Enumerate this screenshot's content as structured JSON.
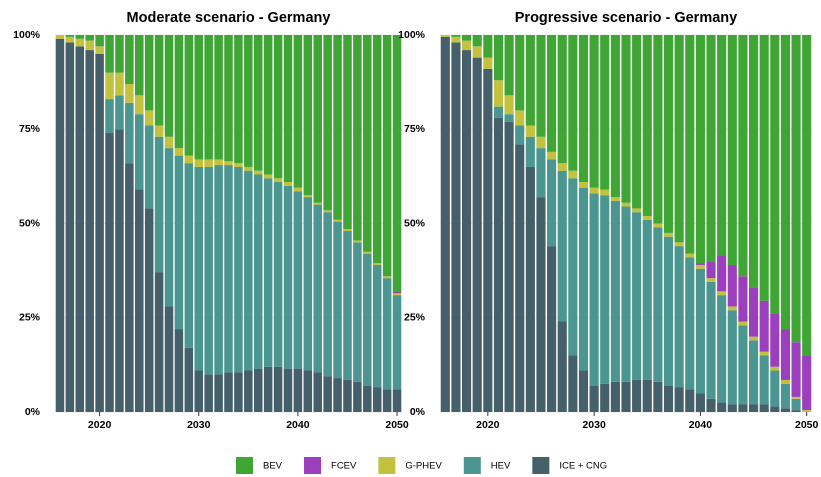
{
  "chart_data": [
    {
      "type": "stacked_bar",
      "title": "Moderate scenario - Germany",
      "x": [
        2016,
        2017,
        2018,
        2019,
        2020,
        2021,
        2022,
        2023,
        2024,
        2025,
        2026,
        2027,
        2028,
        2029,
        2030,
        2031,
        2032,
        2033,
        2034,
        2035,
        2036,
        2037,
        2038,
        2039,
        2040,
        2041,
        2042,
        2043,
        2044,
        2045,
        2046,
        2047,
        2048,
        2049,
        2050
      ],
      "xlim": [
        2015.5,
        2050.5
      ],
      "xticks": [
        2020,
        2030,
        2040,
        2050
      ],
      "ylim": [
        0,
        100
      ],
      "yticks": [
        {
          "value": 0,
          "label": "0%"
        },
        {
          "value": 25,
          "label": "25%"
        },
        {
          "value": 50,
          "label": "50%"
        },
        {
          "value": 75,
          "label": "75%"
        },
        {
          "value": 100,
          "label": "100%"
        }
      ],
      "grid": true,
      "series": [
        {
          "name": "BEV",
          "color": "#3fa535",
          "values": [
            0,
            0.5,
            1,
            1.5,
            3,
            10,
            10,
            13,
            16,
            20,
            24,
            27,
            30,
            32,
            33,
            33,
            33,
            33.5,
            34,
            35,
            36,
            37,
            38,
            39,
            40.5,
            42.5,
            44.5,
            46.5,
            49,
            51.5,
            54.5,
            57.5,
            60.5,
            64,
            68
          ]
        },
        {
          "name": "FCEV",
          "color": "#9b3fbd",
          "values": [
            0,
            0,
            0,
            0,
            0,
            0,
            0,
            0,
            0,
            0,
            0,
            0,
            0,
            0,
            0,
            0,
            0,
            0,
            0,
            0,
            0,
            0,
            0,
            0,
            0,
            0,
            0,
            0,
            0,
            0,
            0,
            0,
            0,
            0,
            0.5
          ]
        },
        {
          "name": "G-PHEV",
          "color": "#c2c23f",
          "values": [
            1,
            1.5,
            2,
            2.5,
            2,
            7,
            6,
            5,
            5,
            4,
            3,
            3,
            2,
            2,
            2,
            2,
            1.5,
            1,
            1,
            1,
            1,
            1,
            1,
            1,
            1,
            0.5,
            0.5,
            0.5,
            0.5,
            0.5,
            0.5,
            0.5,
            0.5,
            0.5,
            0.5
          ]
        },
        {
          "name": "HEV",
          "color": "#4b9690",
          "values": [
            0,
            0,
            0,
            0,
            0,
            9,
            9,
            16,
            20,
            22,
            36,
            42,
            46,
            49,
            54,
            55,
            55.5,
            55,
            54.5,
            53,
            51.5,
            50,
            49,
            48.5,
            47,
            46,
            44.5,
            43.5,
            41.5,
            39.5,
            37,
            35,
            32.5,
            29.5,
            25
          ]
        },
        {
          "name": "ICE + CNG",
          "color": "#45606b",
          "values": [
            99,
            98,
            97,
            96,
            95,
            74,
            75,
            66,
            59,
            54,
            37,
            28,
            22,
            17,
            11,
            10,
            10,
            10.5,
            10.5,
            11,
            11.5,
            12,
            12,
            11.5,
            11.5,
            11,
            10.5,
            9.5,
            9,
            8.5,
            8,
            7,
            6.5,
            6,
            6
          ]
        }
      ]
    },
    {
      "type": "stacked_bar",
      "title": "Progressive scenario - Germany",
      "x": [
        2016,
        2017,
        2018,
        2019,
        2020,
        2021,
        2022,
        2023,
        2024,
        2025,
        2026,
        2027,
        2028,
        2029,
        2030,
        2031,
        2032,
        2033,
        2034,
        2035,
        2036,
        2037,
        2038,
        2039,
        2040,
        2041,
        2042,
        2043,
        2044,
        2045,
        2046,
        2047,
        2048,
        2049,
        2050
      ],
      "xlim": [
        2015.5,
        2050.5
      ],
      "xticks": [
        2020,
        2030,
        2040,
        2050
      ],
      "ylim": [
        0,
        100
      ],
      "yticks": [
        {
          "value": 0,
          "label": "0%"
        },
        {
          "value": 25,
          "label": "25%"
        },
        {
          "value": 50,
          "label": "50%"
        },
        {
          "value": 75,
          "label": "75%"
        },
        {
          "value": 100,
          "label": "100%"
        }
      ],
      "grid": true,
      "series": [
        {
          "name": "BEV",
          "color": "#3fa535",
          "values": [
            0,
            0.5,
            1.5,
            3,
            6,
            12,
            16,
            20,
            24,
            27,
            31,
            34,
            36,
            39,
            40.5,
            41,
            43,
            44.5,
            46,
            48,
            50,
            52.5,
            55,
            58,
            60.5,
            60,
            58.5,
            61,
            64,
            67,
            70.5,
            74,
            78,
            81.5,
            85
          ]
        },
        {
          "name": "FCEV",
          "color": "#9b3fbd",
          "values": [
            0,
            0,
            0,
            0,
            0,
            0,
            0,
            0,
            0,
            0,
            0,
            0,
            0,
            0,
            0,
            0,
            0,
            0,
            0,
            0,
            0,
            0,
            0,
            0,
            0.5,
            4.5,
            9.5,
            11,
            12,
            13,
            13.5,
            14,
            13.5,
            14.5,
            14.5
          ]
        },
        {
          "name": "G-PHEV",
          "color": "#c2c23f",
          "values": [
            0.5,
            1.5,
            2.5,
            3,
            3,
            7,
            5,
            4,
            3,
            3,
            2,
            2,
            2,
            1.5,
            1.5,
            1.5,
            1,
            1,
            1,
            1,
            1,
            1,
            1,
            1,
            1,
            1,
            1,
            1,
            1,
            1,
            1,
            1,
            1,
            0.5,
            0.5
          ]
        },
        {
          "name": "HEV",
          "color": "#4b9690",
          "values": [
            0,
            0,
            0,
            0,
            0,
            3,
            2,
            5,
            8,
            13,
            23,
            40,
            47,
            48.5,
            51,
            50,
            48,
            46.5,
            44.5,
            42.5,
            41,
            39.5,
            37.5,
            35,
            33,
            31,
            28.5,
            25,
            21,
            17,
            13,
            9.5,
            6.5,
            3,
            0
          ]
        },
        {
          "name": "ICE + CNG",
          "color": "#45606b",
          "values": [
            99.5,
            98,
            96,
            94,
            91,
            78,
            77,
            71,
            65,
            57,
            44,
            24,
            15,
            11,
            7,
            7.5,
            8,
            8,
            8.5,
            8.5,
            8,
            7,
            6.5,
            6,
            5,
            3.5,
            2.5,
            2,
            2,
            2,
            2,
            1.5,
            1,
            0.5,
            0
          ]
        }
      ]
    }
  ]
}
